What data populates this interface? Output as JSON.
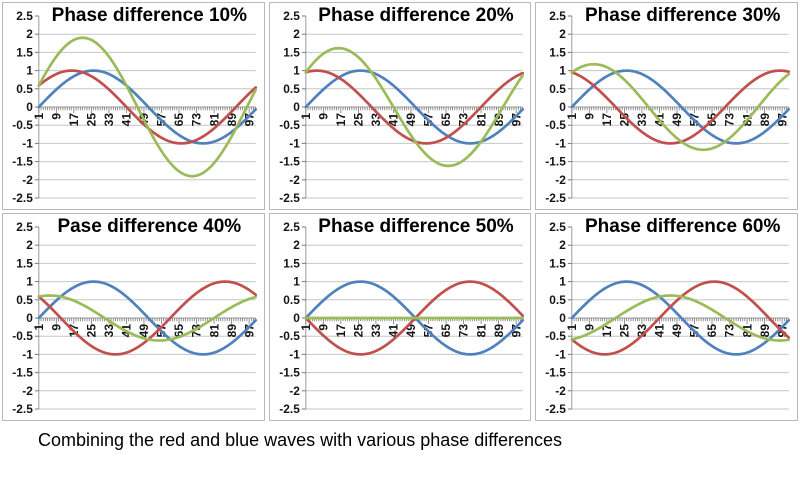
{
  "caption": {
    "text": "Combining the red and blue waves with various phase differences"
  },
  "palette": {
    "blue": "#4F81BD",
    "red": "#C0504D",
    "green": "#9BBB59",
    "gridline": "#C6C6C6",
    "axis": "#9A9A9A",
    "tick": "#7A7A7A",
    "chart_border": "#B9B9B9",
    "label_color": "#141414",
    "background": "#FFFFFF"
  },
  "axes": {
    "x_range": [
      1,
      100
    ],
    "ylim": [
      -2.5,
      2.5
    ],
    "y_step": 0.5,
    "gridline_values": [
      2,
      1.5,
      1,
      0.5,
      0,
      -0.5,
      -1,
      -1.5,
      -2,
      -2.5
    ],
    "y_tick_values": [
      2.5,
      2,
      1.5,
      1,
      0.5,
      0,
      -0.5,
      -1,
      -1.5,
      -2,
      -2.5
    ],
    "grid": "horizontal-on",
    "legend": "none",
    "x_label_rotation_deg": -90
  },
  "chart_data": [
    {
      "type": "line",
      "title": "Phase difference 10%",
      "phase_difference_percent": 10,
      "x_range": [
        1,
        100
      ],
      "ylim": [
        -2.5,
        2.5
      ],
      "x_tick_labels": [
        "1",
        "9",
        "17",
        "25",
        "33",
        "41",
        "49",
        "57",
        "65",
        "73",
        "81",
        "89",
        "97"
      ],
      "y_tick_labels": [
        "2.5",
        "2",
        "1.5",
        "1",
        "0.5",
        "0",
        "-0.5",
        "-1",
        "-1.5",
        "-2",
        "-2.5"
      ],
      "series": [
        {
          "name": "blue-wave",
          "color": "#4F81BD",
          "kind": "sine",
          "amplitude": 1,
          "phase_frac": 0.0,
          "formula": "y = sin(2pi*(x-1)/100)"
        },
        {
          "name": "red-wave",
          "color": "#C0504D",
          "kind": "sine",
          "amplitude": 1,
          "phase_frac": 0.1,
          "formula": "y = sin(2pi*((x-1)/100 + 0.10))"
        },
        {
          "name": "green-sum-wave",
          "color": "#9BBB59",
          "kind": "sum",
          "amplitude": 1.902,
          "formula": "y = blue + red"
        }
      ]
    },
    {
      "type": "line",
      "title": "Phase difference 20%",
      "phase_difference_percent": 20,
      "x_range": [
        1,
        100
      ],
      "ylim": [
        -2.5,
        2.5
      ],
      "x_tick_labels": [
        "1",
        "9",
        "17",
        "25",
        "33",
        "41",
        "49",
        "57",
        "65",
        "73",
        "81",
        "89",
        "97"
      ],
      "y_tick_labels": [
        "2.5",
        "2",
        "1.5",
        "1",
        "0.5",
        "0",
        "-0.5",
        "-1",
        "-1.5",
        "-2",
        "-2.5"
      ],
      "series": [
        {
          "name": "blue-wave",
          "color": "#4F81BD",
          "kind": "sine",
          "amplitude": 1,
          "phase_frac": 0.0,
          "formula": "y = sin(2pi*(x-1)/100)"
        },
        {
          "name": "red-wave",
          "color": "#C0504D",
          "kind": "sine",
          "amplitude": 1,
          "phase_frac": 0.2,
          "formula": "y = sin(2pi*((x-1)/100 + 0.20))"
        },
        {
          "name": "green-sum-wave",
          "color": "#9BBB59",
          "kind": "sum",
          "amplitude": 1.618,
          "formula": "y = blue + red"
        }
      ]
    },
    {
      "type": "line",
      "title": "Phase difference 30%",
      "phase_difference_percent": 30,
      "x_range": [
        1,
        100
      ],
      "ylim": [
        -2.5,
        2.5
      ],
      "x_tick_labels": [
        "1",
        "9",
        "17",
        "25",
        "33",
        "41",
        "49",
        "57",
        "65",
        "73",
        "81",
        "89",
        "97"
      ],
      "y_tick_labels": [
        "2.5",
        "2",
        "1.5",
        "1",
        "0.5",
        "0",
        "-0.5",
        "-1",
        "-1.5",
        "-2",
        "-2.5"
      ],
      "series": [
        {
          "name": "blue-wave",
          "color": "#4F81BD",
          "kind": "sine",
          "amplitude": 1,
          "phase_frac": 0.0,
          "formula": "y = sin(2pi*(x-1)/100)"
        },
        {
          "name": "red-wave",
          "color": "#C0504D",
          "kind": "sine",
          "amplitude": 1,
          "phase_frac": 0.3,
          "formula": "y = sin(2pi*((x-1)/100 + 0.30))"
        },
        {
          "name": "green-sum-wave",
          "color": "#9BBB59",
          "kind": "sum",
          "amplitude": 1.176,
          "formula": "y = blue + red"
        }
      ]
    },
    {
      "type": "line",
      "title": "Pase difference 40%",
      "phase_difference_percent": 40,
      "x_range": [
        1,
        100
      ],
      "ylim": [
        -2.5,
        2.5
      ],
      "x_tick_labels": [
        "1",
        "9",
        "17",
        "25",
        "33",
        "41",
        "49",
        "57",
        "65",
        "73",
        "81",
        "89",
        "97"
      ],
      "y_tick_labels": [
        "2.5",
        "2",
        "1.5",
        "1",
        "0.5",
        "0",
        "-0.5",
        "-1",
        "-1.5",
        "-2",
        "-2.5"
      ],
      "series": [
        {
          "name": "blue-wave",
          "color": "#4F81BD",
          "kind": "sine",
          "amplitude": 1,
          "phase_frac": 0.0,
          "formula": "y = sin(2pi*(x-1)/100)"
        },
        {
          "name": "red-wave",
          "color": "#C0504D",
          "kind": "sine",
          "amplitude": 1,
          "phase_frac": 0.4,
          "formula": "y = sin(2pi*((x-1)/100 + 0.40))"
        },
        {
          "name": "green-sum-wave",
          "color": "#9BBB59",
          "kind": "sum",
          "amplitude": 0.618,
          "formula": "y = blue + red"
        }
      ]
    },
    {
      "type": "line",
      "title": "Phase difference 50%",
      "phase_difference_percent": 50,
      "x_range": [
        1,
        100
      ],
      "ylim": [
        -2.5,
        2.5
      ],
      "x_tick_labels": [
        "1",
        "9",
        "17",
        "25",
        "33",
        "41",
        "49",
        "57",
        "65",
        "73",
        "81",
        "89",
        "97"
      ],
      "y_tick_labels": [
        "2.5",
        "2",
        "1.5",
        "1",
        "0.5",
        "0",
        "-0.5",
        "-1",
        "-1.5",
        "-2",
        "-2.5"
      ],
      "series": [
        {
          "name": "blue-wave",
          "color": "#4F81BD",
          "kind": "sine",
          "amplitude": 1,
          "phase_frac": 0.0,
          "formula": "y = sin(2pi*(x-1)/100)"
        },
        {
          "name": "red-wave",
          "color": "#C0504D",
          "kind": "sine",
          "amplitude": 1,
          "phase_frac": 0.5,
          "formula": "y = sin(2pi*((x-1)/100 + 0.50))"
        },
        {
          "name": "green-sum-wave",
          "color": "#9BBB59",
          "kind": "sum",
          "amplitude": 0,
          "formula": "y = blue + red = 0"
        }
      ]
    },
    {
      "type": "line",
      "title": "Phase difference 60%",
      "phase_difference_percent": 60,
      "x_range": [
        1,
        100
      ],
      "ylim": [
        -2.5,
        2.5
      ],
      "x_tick_labels": [
        "1",
        "9",
        "17",
        "25",
        "33",
        "41",
        "49",
        "57",
        "65",
        "73",
        "81",
        "89",
        "97"
      ],
      "y_tick_labels": [
        "2.5",
        "2",
        "1.5",
        "1",
        "0.5",
        "0",
        "-0.5",
        "-1",
        "-1.5",
        "-2",
        "-2.5"
      ],
      "series": [
        {
          "name": "blue-wave",
          "color": "#4F81BD",
          "kind": "sine",
          "amplitude": 1,
          "phase_frac": 0.0,
          "formula": "y = sin(2pi*(x-1)/100)"
        },
        {
          "name": "red-wave",
          "color": "#C0504D",
          "kind": "sine",
          "amplitude": 1,
          "phase_frac": 0.6,
          "formula": "y = sin(2pi*((x-1)/100 + 0.60))"
        },
        {
          "name": "green-sum-wave",
          "color": "#9BBB59",
          "kind": "sum",
          "amplitude": -0.618,
          "formula": "y = blue + red"
        }
      ]
    }
  ]
}
